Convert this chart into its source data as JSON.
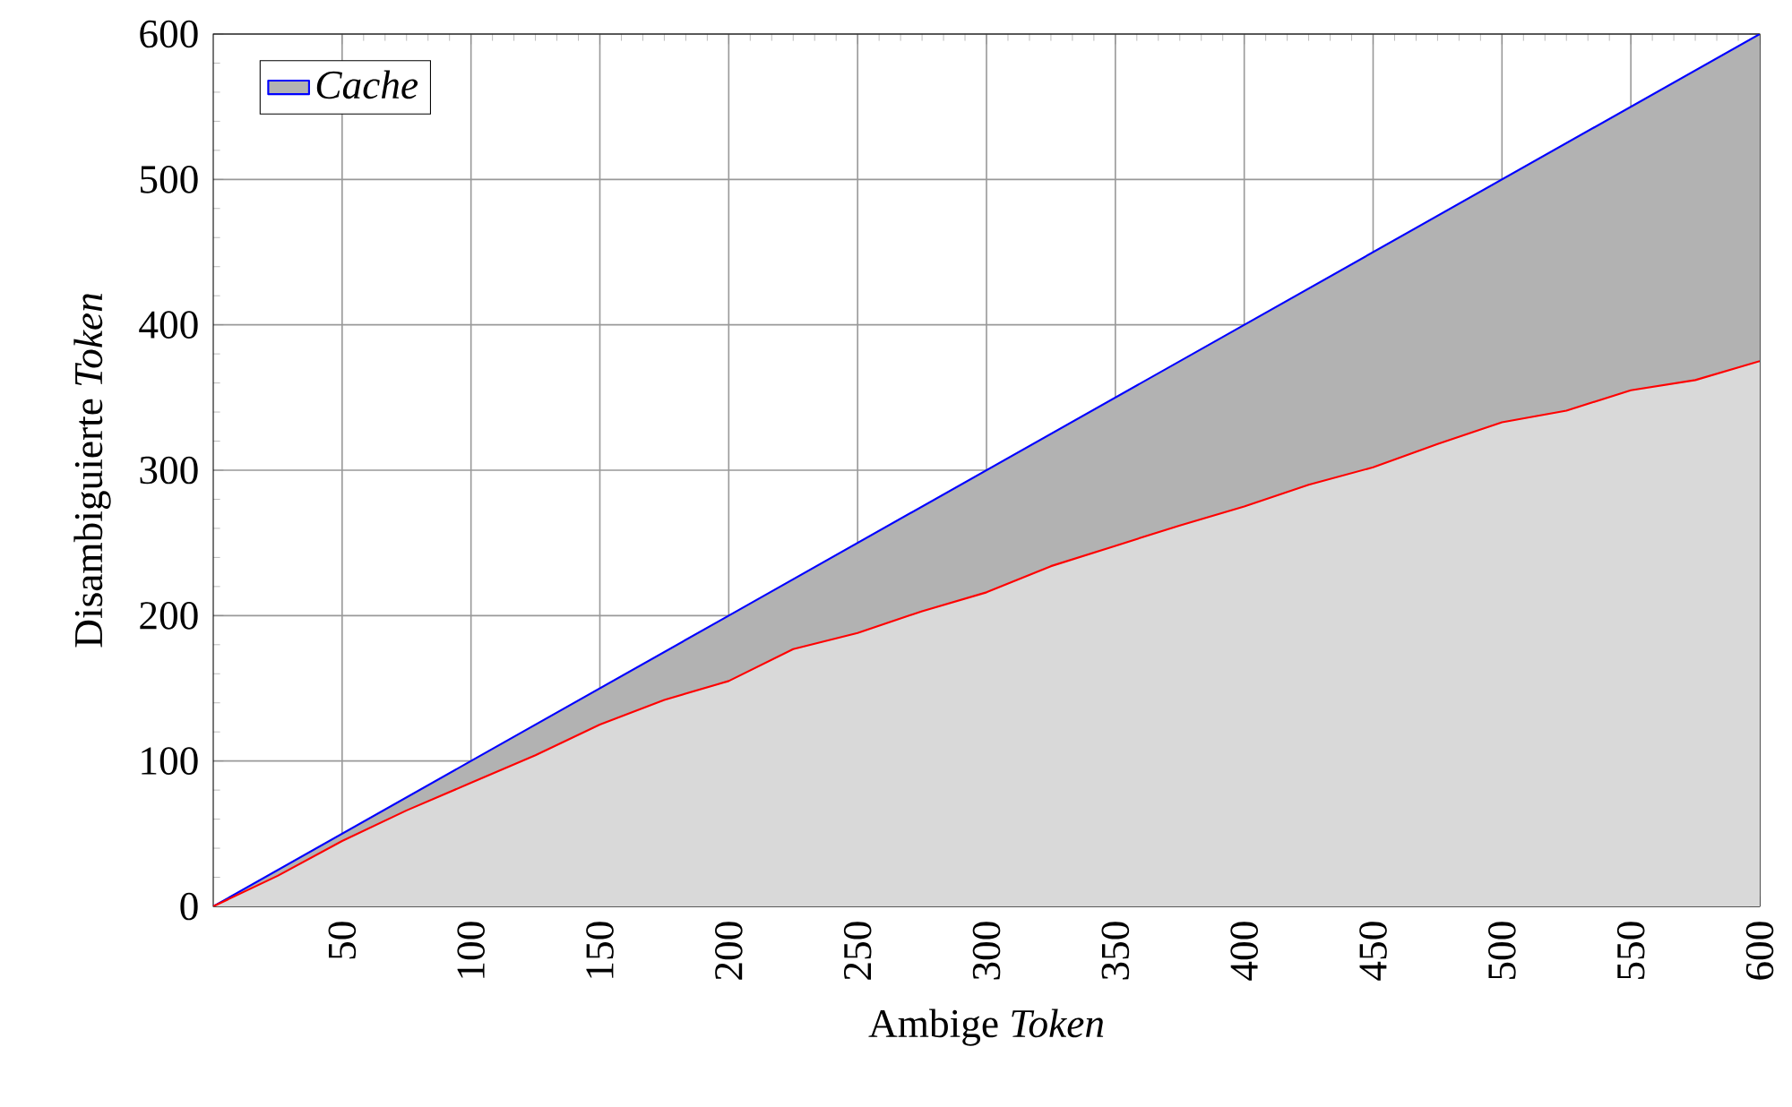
{
  "chart_data": {
    "type": "area",
    "xlabel": "Ambige *Token*",
    "ylabel": "Disambiguierte *Token*",
    "xlim": [
      0,
      600
    ],
    "ylim": [
      0,
      600
    ],
    "xticks": [
      50,
      100,
      150,
      200,
      250,
      300,
      350,
      400,
      450,
      500,
      550,
      600
    ],
    "yticks": [
      0,
      100,
      200,
      300,
      400,
      500,
      600
    ],
    "grid": true,
    "legend": "top left",
    "series": [
      {
        "name": "Cache",
        "color": "#0000ff",
        "x": [
          0,
          100,
          200,
          300,
          400,
          500,
          600
        ],
        "values": [
          0,
          100,
          200,
          300,
          400,
          500,
          600
        ]
      },
      {
        "color": "#ff0000",
        "x": [
          0,
          25,
          50,
          75,
          100,
          125,
          150,
          175,
          200,
          225,
          250,
          275,
          300,
          325,
          350,
          375,
          400,
          425,
          450,
          475,
          500,
          525,
          550,
          575,
          600
        ],
        "values": [
          0,
          21,
          45,
          66,
          85,
          104,
          125,
          142,
          155,
          177,
          188,
          203,
          216,
          234,
          248,
          262,
          275,
          290,
          302,
          318,
          333,
          341,
          355,
          362,
          375
        ]
      }
    ]
  }
}
